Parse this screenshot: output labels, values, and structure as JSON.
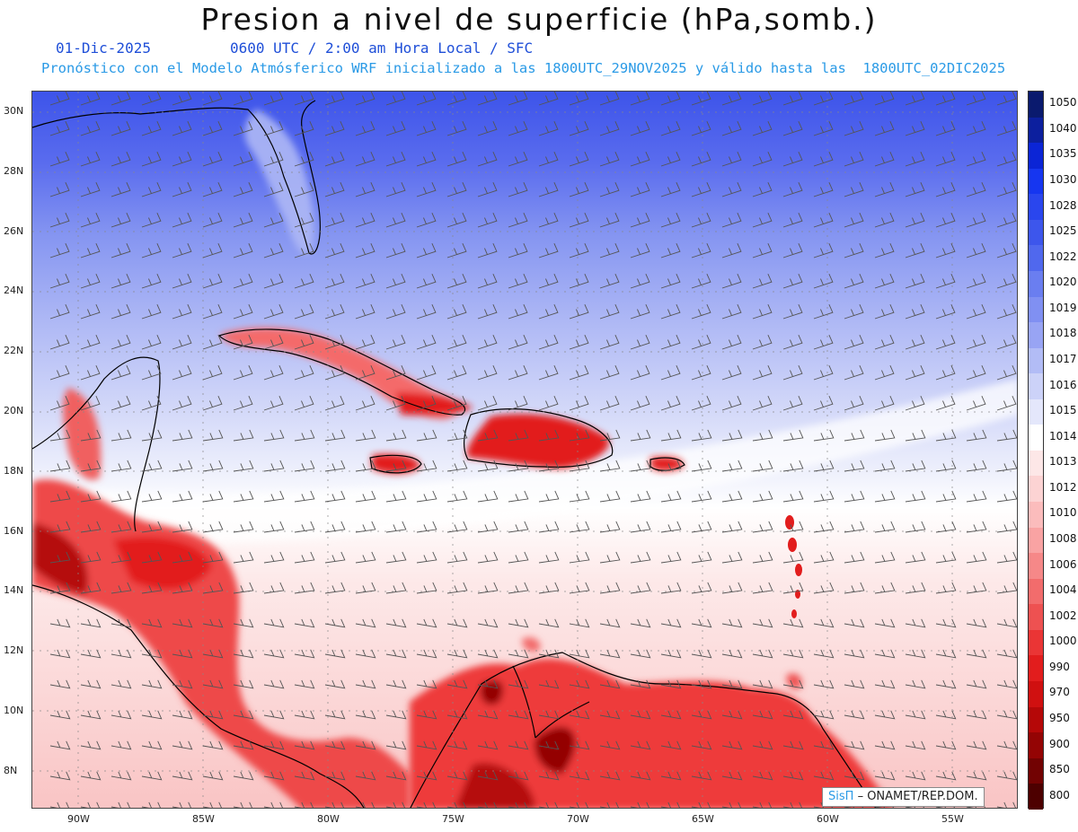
{
  "header": {
    "title": "Presion a nivel de superficie (hPa,somb.)",
    "date": "01-Dic-2025",
    "time_info": "0600 UTC / 2:00 am Hora Local / SFC",
    "model_info": "Pronóstico con el Modelo Atmósferico WRF inicializado a las 1800UTC_29NOV2025 y válido hasta las  1800UTC_02DIC2025"
  },
  "axes": {
    "lat_labels": [
      "30N",
      "28N",
      "26N",
      "24N",
      "22N",
      "20N",
      "18N",
      "16N",
      "14N",
      "12N",
      "10N",
      "8N"
    ],
    "lon_labels": [
      "90W",
      "85W",
      "80W",
      "75W",
      "70W",
      "65W",
      "60W",
      "55W"
    ]
  },
  "colorbar": {
    "levels": [
      "1050",
      "1040",
      "1035",
      "1030",
      "1028",
      "1025",
      "1022",
      "1020",
      "1019",
      "1018",
      "1017",
      "1016",
      "1015",
      "1014",
      "1013",
      "1012",
      "1010",
      "1008",
      "1006",
      "1004",
      "1002",
      "1000",
      "990",
      "970",
      "950",
      "900",
      "850",
      "800"
    ],
    "colors": [
      "#0a1a6e",
      "#0c1f9e",
      "#0b25d6",
      "#1636f0",
      "#2a46ee",
      "#3d56ec",
      "#5068ee",
      "#6a7ef0",
      "#8090f2",
      "#98a4f4",
      "#b2bcf6",
      "#ccd2f8",
      "#e4e7fb",
      "#ffffff",
      "#fde7e7",
      "#fcd3d3",
      "#fbbcbc",
      "#f9a3a3",
      "#f68888",
      "#f26c6c",
      "#ee5151",
      "#ea3535",
      "#e21d1d",
      "#d01010",
      "#b50808",
      "#940404",
      "#720202",
      "#4d0000"
    ]
  },
  "credit": {
    "brand": "SisΠ",
    "text": "– ONAMET/REP.DOM."
  }
}
